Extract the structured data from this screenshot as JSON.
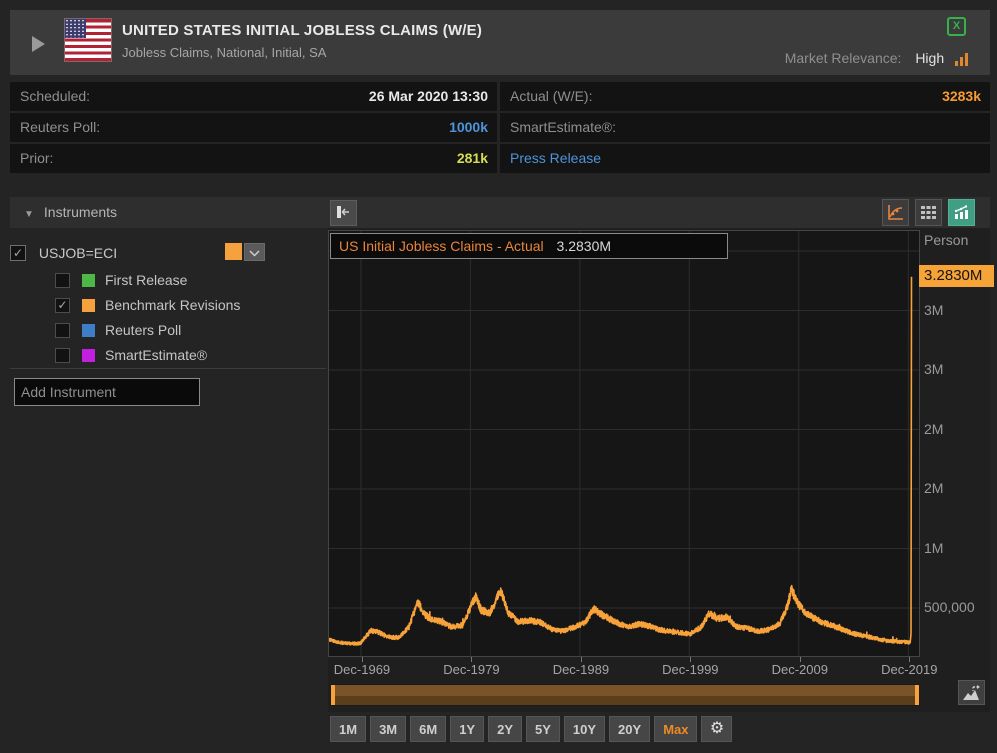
{
  "header": {
    "title": "UNITED STATES INITIAL JOBLESS CLAIMS (W/E)",
    "subtitle": "Jobless Claims, National, Initial, SA",
    "market_relevance_label": "Market Relevance:",
    "market_relevance_value": "High",
    "icons": {
      "expander": "play-triangle",
      "flag": "us-flag",
      "export": "excel",
      "relevance": "signal-bars"
    }
  },
  "info_table": {
    "left_rows": [
      {
        "label": "Scheduled:",
        "value": "26 Mar 2020 13:30",
        "value_color": "#e8e8e8",
        "link": false
      },
      {
        "label": "Reuters Poll:",
        "value": "1000k",
        "value_color": "#4f93d9",
        "link": false
      },
      {
        "label": "Prior:",
        "value": "281k",
        "value_color": "#d6de53",
        "link": false
      }
    ],
    "right_rows": [
      {
        "label": "Actual (W/E):",
        "value": "3283k",
        "value_color": "#f79b33",
        "link": false
      },
      {
        "label": "SmartEstimate®:",
        "value": "",
        "value_color": "",
        "link": false
      },
      {
        "label": "",
        "value": "Press Release",
        "value_color": "#4f93d9",
        "link": true
      }
    ]
  },
  "instruments_panel": {
    "section_label": "Instruments",
    "instrument": {
      "checked": true,
      "ric": "USJOB=ECI",
      "swatch_color": "#f5a13d"
    },
    "children": [
      {
        "checked": false,
        "swatch_color": "#4db848",
        "label": "First Release"
      },
      {
        "checked": true,
        "swatch_color": "#f5a13d",
        "label": "Benchmark Revisions"
      },
      {
        "checked": false,
        "swatch_color": "#3e7ec6",
        "label": "Reuters Poll"
      },
      {
        "checked": false,
        "swatch_color": "#c31fe0",
        "label": "SmartEstimate®"
      }
    ],
    "add_instrument_placeholder": "Add Instrument"
  },
  "chart_data": {
    "type": "line",
    "legend_label": "US Initial Jobless Claims - Actual",
    "legend_value": "3.2830M",
    "unit_label": "Person",
    "latest_badge": "3.2830M",
    "x_domain_year": [
      1967.0,
      2020.9
    ],
    "y_domain_k": [
      0,
      3670
    ],
    "grid": true,
    "x_ticks": [
      {
        "year": 1969.92,
        "label": "Dec-1969"
      },
      {
        "year": 1979.92,
        "label": "Dec-1979"
      },
      {
        "year": 1989.92,
        "label": "Dec-1989"
      },
      {
        "year": 1999.92,
        "label": "Dec-1999"
      },
      {
        "year": 2009.92,
        "label": "Dec-2009"
      },
      {
        "year": 2019.92,
        "label": "Dec-2019"
      }
    ],
    "y_gridlines_k": [
      3500,
      3000,
      2500,
      2000,
      1500,
      1000,
      500
    ],
    "y_ticks": [
      {
        "value_k": 3000,
        "label": "3M"
      },
      {
        "value_k": 2500,
        "label": "3M"
      },
      {
        "value_k": 2000,
        "label": "2M"
      },
      {
        "value_k": 1500,
        "label": "2M"
      },
      {
        "value_k": 1000,
        "label": "1M"
      },
      {
        "value_k": 500,
        "label": "500,000"
      }
    ],
    "series": [
      {
        "name": "US Initial Jobless Claims - Actual",
        "color": "#f7a23b",
        "noise_free_after_year": 2020.05,
        "control_points_year_thousands": [
          [
            1967.0,
            235
          ],
          [
            1967.6,
            215
          ],
          [
            1968.5,
            205
          ],
          [
            1969.3,
            200
          ],
          [
            1969.9,
            205
          ],
          [
            1970.8,
            310
          ],
          [
            1971.4,
            300
          ],
          [
            1972.3,
            260
          ],
          [
            1973.3,
            248
          ],
          [
            1974.3,
            340
          ],
          [
            1975.1,
            555
          ],
          [
            1975.7,
            450
          ],
          [
            1976.4,
            400
          ],
          [
            1977.2,
            390
          ],
          [
            1978.2,
            340
          ],
          [
            1979.2,
            355
          ],
          [
            1980.4,
            600
          ],
          [
            1980.9,
            480
          ],
          [
            1981.7,
            460
          ],
          [
            1982.7,
            650
          ],
          [
            1983.4,
            460
          ],
          [
            1984.3,
            385
          ],
          [
            1985.3,
            395
          ],
          [
            1986.3,
            380
          ],
          [
            1987.3,
            325
          ],
          [
            1988.3,
            305
          ],
          [
            1989.3,
            335
          ],
          [
            1990.4,
            380
          ],
          [
            1991.2,
            495
          ],
          [
            1991.9,
            445
          ],
          [
            1992.8,
            400
          ],
          [
            1993.6,
            365
          ],
          [
            1994.4,
            340
          ],
          [
            1995.3,
            365
          ],
          [
            1996.2,
            350
          ],
          [
            1997.1,
            320
          ],
          [
            1998.0,
            305
          ],
          [
            1999.0,
            292
          ],
          [
            2000.0,
            283
          ],
          [
            2001.0,
            340
          ],
          [
            2001.75,
            455
          ],
          [
            2002.5,
            410
          ],
          [
            2003.3,
            425
          ],
          [
            2004.2,
            345
          ],
          [
            2005.2,
            330
          ],
          [
            2006.2,
            305
          ],
          [
            2007.2,
            318
          ],
          [
            2008.2,
            375
          ],
          [
            2008.9,
            520
          ],
          [
            2009.25,
            660
          ],
          [
            2009.8,
            540
          ],
          [
            2010.5,
            465
          ],
          [
            2011.3,
            415
          ],
          [
            2012.2,
            377
          ],
          [
            2013.1,
            348
          ],
          [
            2014.0,
            315
          ],
          [
            2015.0,
            283
          ],
          [
            2016.0,
            263
          ],
          [
            2017.0,
            245
          ],
          [
            2018.0,
            222
          ],
          [
            2019.0,
            218
          ],
          [
            2019.8,
            213
          ],
          [
            2020.05,
            211
          ],
          [
            2020.1,
            211
          ],
          [
            2020.17,
            282
          ],
          [
            2020.215,
            3283
          ]
        ]
      }
    ]
  },
  "range_slider": {
    "extend_icon": "extend-chart"
  },
  "toolbar": {
    "ranges": [
      {
        "label": "1M",
        "selected": false
      },
      {
        "label": "3M",
        "selected": false
      },
      {
        "label": "6M",
        "selected": false
      },
      {
        "label": "1Y",
        "selected": false
      },
      {
        "label": "2Y",
        "selected": false
      },
      {
        "label": "5Y",
        "selected": false
      },
      {
        "label": "10Y",
        "selected": false
      },
      {
        "label": "20Y",
        "selected": false
      },
      {
        "label": "Max",
        "selected": true
      }
    ],
    "settings_icon": "gear"
  }
}
